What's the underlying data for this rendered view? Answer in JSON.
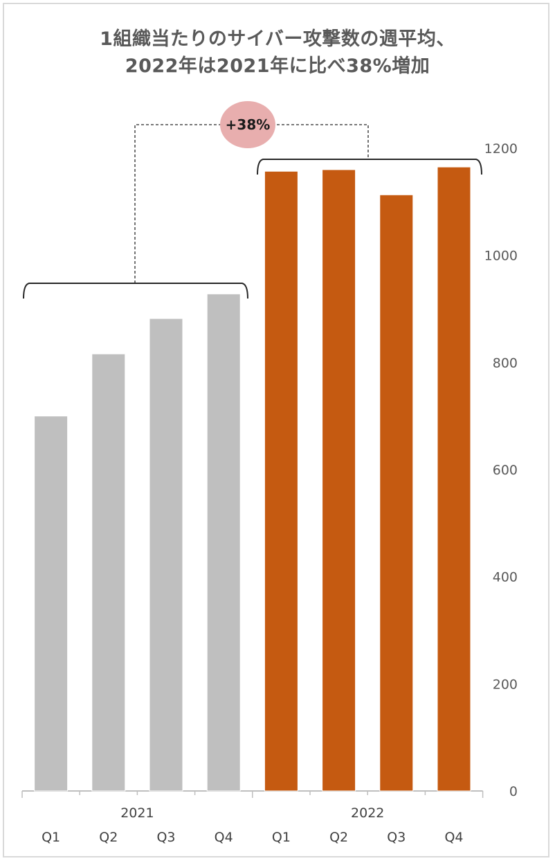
{
  "title_line1": "1組織当たりのサイバー攻撃数の週平均、",
  "title_line2": "2022年は2021年に比べ38%増加",
  "annotation": "+38%",
  "colors": {
    "y2021": "#bfbfbf",
    "y2022": "#c55a11",
    "badge": "#e8aeae",
    "axis": "#bfbfbf",
    "text": "#595959"
  },
  "chart_data": {
    "type": "bar",
    "groups": [
      {
        "year": "2021",
        "categories": [
          "Q1",
          "Q2",
          "Q3",
          "Q4"
        ],
        "values": [
          700,
          816,
          882,
          928
        ]
      },
      {
        "year": "2022",
        "categories": [
          "Q1",
          "Q2",
          "Q3",
          "Q4"
        ],
        "values": [
          1157,
          1160,
          1113,
          1165
        ]
      }
    ],
    "y_axis": {
      "position": "right",
      "ylim": [
        0,
        1200
      ],
      "ticks": [
        0,
        200,
        400,
        600,
        800,
        1000,
        1200
      ]
    },
    "title": "1組織当たりのサイバー攻撃数の週平均、2022年は2021年に比べ38%増加",
    "xlabel": "",
    "ylabel": "",
    "grid": false,
    "legend": "none"
  }
}
